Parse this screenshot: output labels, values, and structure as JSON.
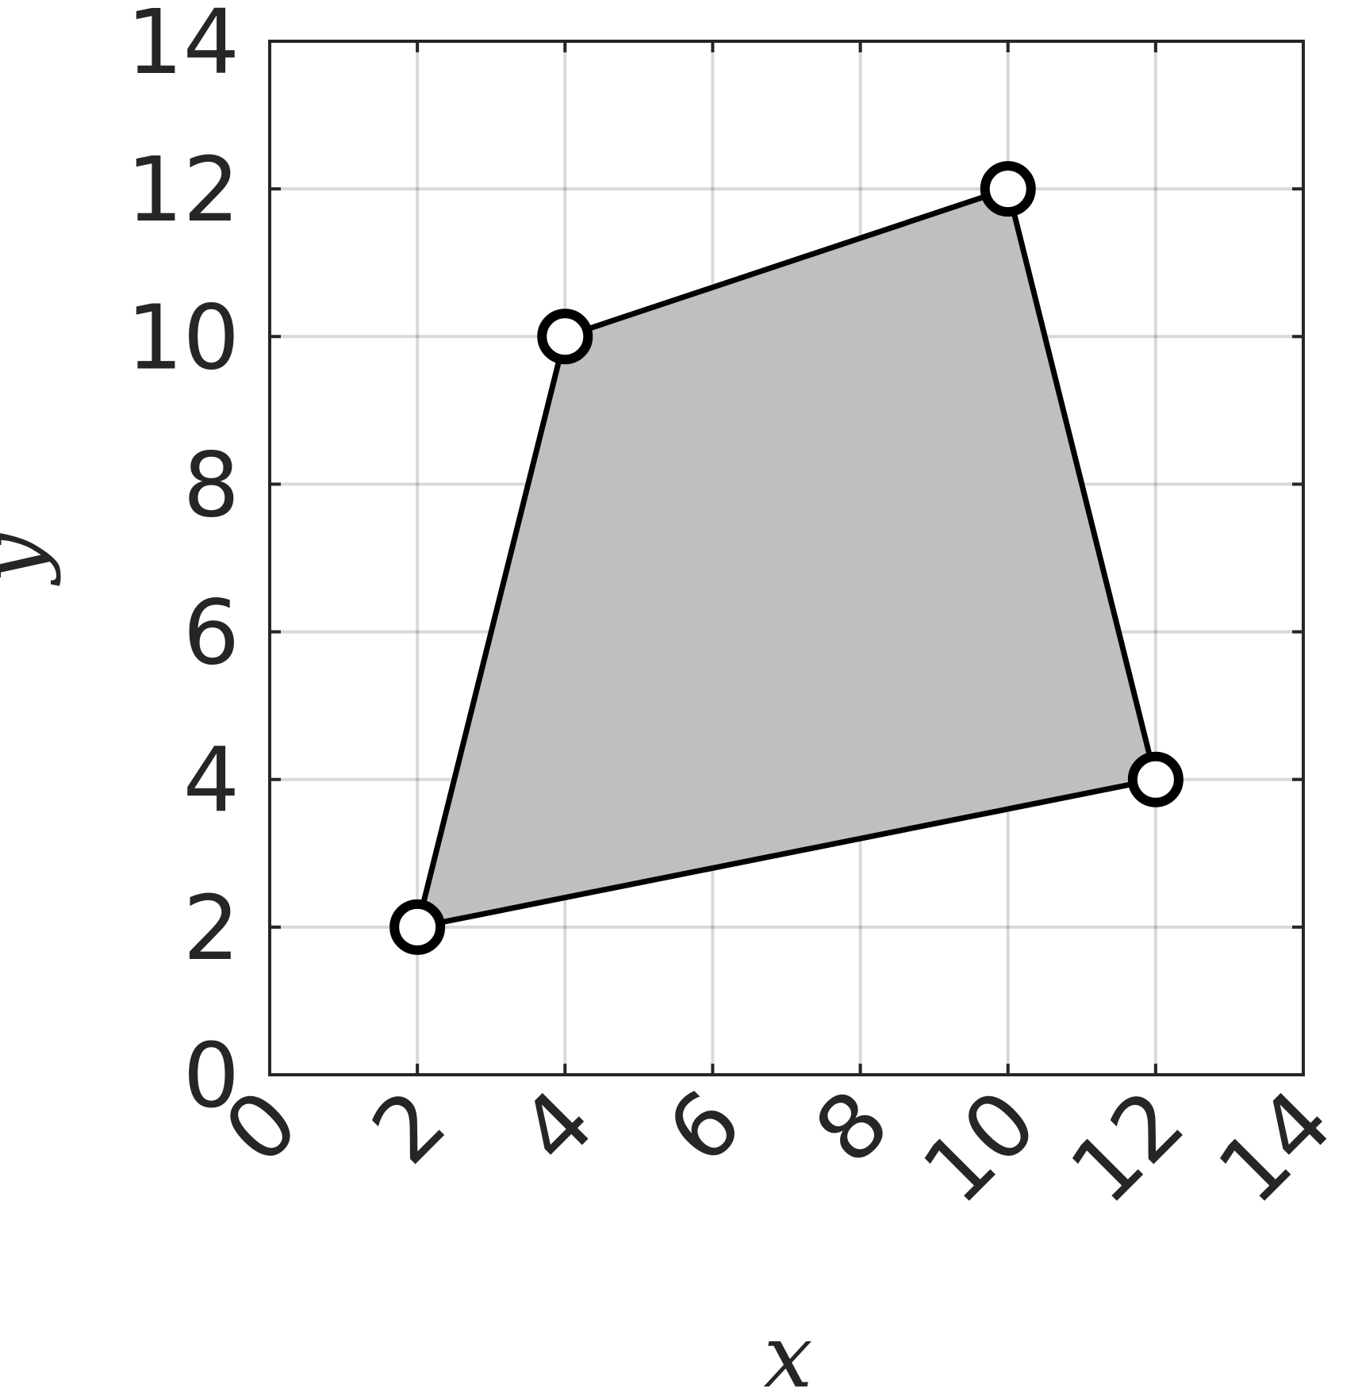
{
  "chart_data": {
    "type": "area",
    "title": "",
    "xlabel": "x",
    "ylabel": "y",
    "xlim": [
      0,
      14
    ],
    "ylim": [
      0,
      14
    ],
    "xticks": [
      0,
      2,
      4,
      6,
      8,
      10,
      12,
      14
    ],
    "yticks": [
      0,
      2,
      4,
      6,
      8,
      10,
      12,
      14
    ],
    "xtick_labels": [
      "0",
      "2",
      "4",
      "6",
      "8",
      "10",
      "12",
      "14"
    ],
    "ytick_labels": [
      "0",
      "2",
      "4",
      "6",
      "8",
      "10",
      "12",
      "14"
    ],
    "xtick_rotation": "-45deg",
    "grid": true,
    "legend": "none",
    "series": [
      {
        "kind": "filled-polygon",
        "points": [
          {
            "x": 2,
            "y": 2
          },
          {
            "x": 4,
            "y": 10
          },
          {
            "x": 10,
            "y": 12
          },
          {
            "x": 12,
            "y": 4
          }
        ],
        "fill_color": "#bfbfbf",
        "edge_color": "#000000",
        "marker": "open-circle",
        "marker_face": "#ffffff",
        "marker_edge": "#000000"
      }
    ]
  }
}
